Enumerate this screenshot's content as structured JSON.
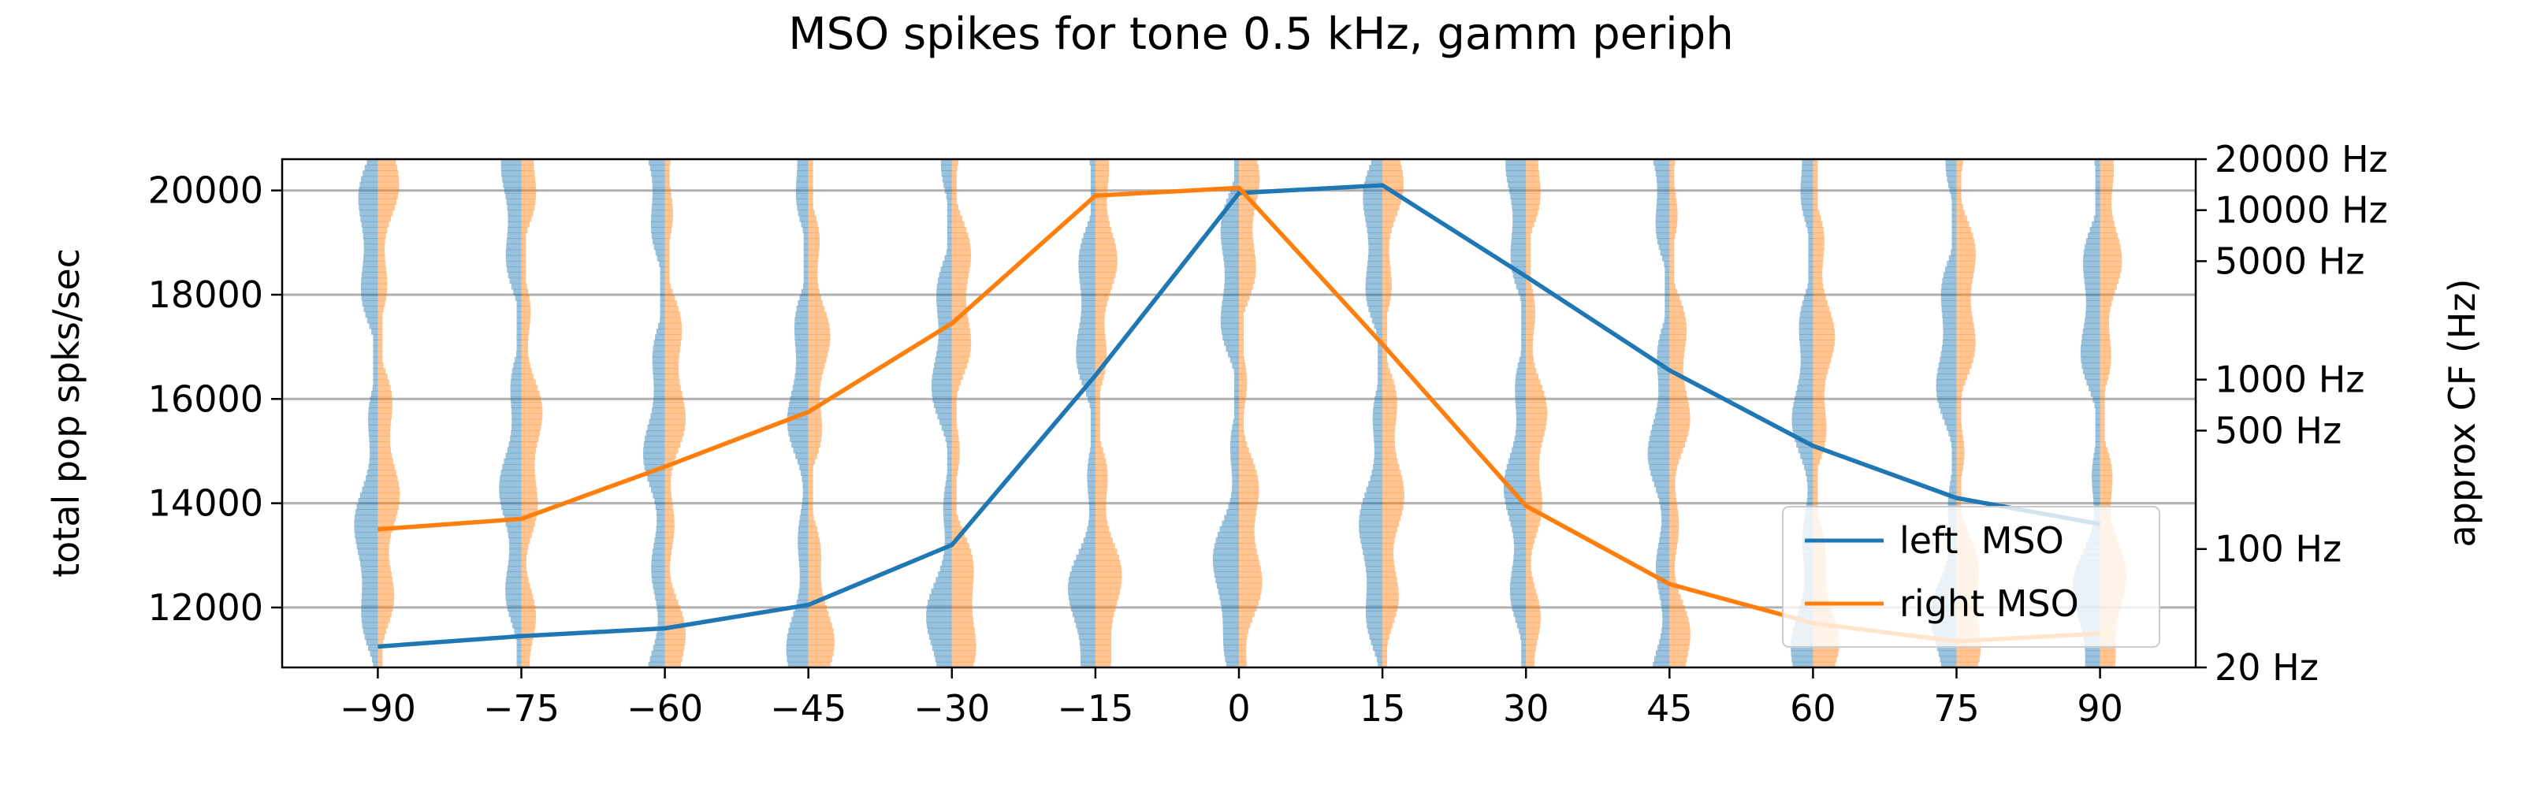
{
  "chart_data": {
    "type": "line",
    "title": "MSO spikes for tone 0.5 kHz, gamm periph",
    "ylabel": "total pop spks/sec",
    "ylabel_right": "approx CF (Hz)",
    "xlim": [
      -100,
      100
    ],
    "ylim": [
      10850,
      20600
    ],
    "x_ticks": [
      -90,
      -75,
      -60,
      -45,
      -30,
      -15,
      0,
      15,
      30,
      45,
      60,
      75,
      90
    ],
    "x_tick_labels": [
      "−90",
      "−75",
      "−60",
      "−45",
      "−30",
      "−15",
      "0",
      "15",
      "30",
      "45",
      "60",
      "75",
      "90"
    ],
    "y_ticks": [
      12000,
      14000,
      16000,
      18000,
      20000
    ],
    "y_tick_labels": [
      "12000",
      "14000",
      "16000",
      "18000",
      "20000"
    ],
    "right_axis": {
      "scale": "log",
      "range_hz": [
        20,
        20000
      ],
      "ticks_hz": [
        20,
        100,
        500,
        1000,
        5000,
        10000,
        20000
      ],
      "tick_labels": [
        "20 Hz",
        "100 Hz",
        "500 Hz",
        "1000 Hz",
        "5000 Hz",
        "10000 Hz",
        "20000 Hz"
      ]
    },
    "grid": "horizontal",
    "legend_position": "lower-right",
    "x": [
      -90,
      -75,
      -60,
      -45,
      -30,
      -15,
      0,
      15,
      30,
      45,
      60,
      75,
      90
    ],
    "series": [
      {
        "name": "left  MSO",
        "color": "#1f77b4",
        "values": [
          11250,
          11450,
          11600,
          12050,
          13200,
          16450,
          19950,
          20100,
          18350,
          16550,
          15100,
          14100,
          13600
        ]
      },
      {
        "name": "right MSO",
        "color": "#ff7f0e",
        "values": [
          13500,
          13700,
          14700,
          15750,
          17450,
          19900,
          20050,
          17050,
          13950,
          12450,
          11700,
          11350,
          11500
        ]
      }
    ],
    "histograms": {
      "description_colors": {
        "left": "#1f77b4",
        "right": "#ff7f0e"
      },
      "alpha": 0.45
    }
  }
}
